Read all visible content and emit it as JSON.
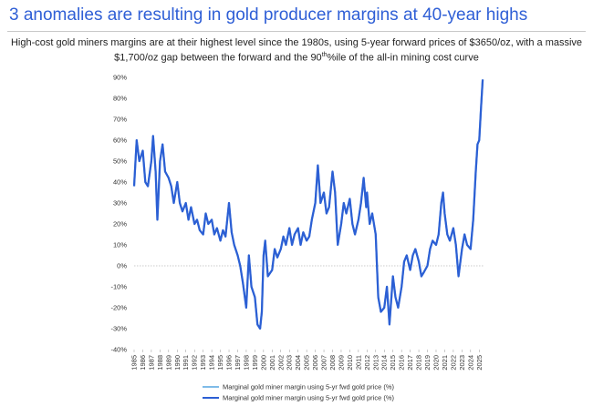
{
  "chart_data": {
    "type": "line",
    "title": "3 anomalies are resulting in gold producer margins at 40-year highs",
    "subtitle": [
      "High-cost gold miners margins are at their highest level since the 1980s, using 5-year forward prices of $3650/oz, with a massive $1,700/oz gap between the forward and the 90",
      "th",
      "%ile of the all-in mining cost curve"
    ],
    "x": [
      1985.0,
      1985.3,
      1985.6,
      1986.0,
      1986.3,
      1986.6,
      1987.0,
      1987.2,
      1987.5,
      1987.7,
      1988.0,
      1988.3,
      1988.6,
      1989.0,
      1989.3,
      1989.6,
      1990.0,
      1990.3,
      1990.6,
      1991.0,
      1991.3,
      1991.6,
      1992.0,
      1992.3,
      1992.6,
      1993.0,
      1993.3,
      1993.6,
      1994.0,
      1994.3,
      1994.6,
      1995.0,
      1995.3,
      1995.6,
      1996.0,
      1996.3,
      1996.6,
      1997.0,
      1997.3,
      1997.6,
      1998.0,
      1998.3,
      1998.6,
      1999.0,
      1999.3,
      1999.6,
      1999.8,
      2000.0,
      2000.2,
      2000.5,
      2001.0,
      2001.3,
      2001.6,
      2002.0,
      2002.3,
      2002.6,
      2003.0,
      2003.3,
      2003.6,
      2004.0,
      2004.3,
      2004.6,
      2005.0,
      2005.3,
      2005.6,
      2006.0,
      2006.3,
      2006.6,
      2007.0,
      2007.3,
      2007.6,
      2008.0,
      2008.3,
      2008.6,
      2009.0,
      2009.3,
      2009.6,
      2010.0,
      2010.3,
      2010.6,
      2011.0,
      2011.3,
      2011.6,
      2011.9,
      2012.0,
      2012.3,
      2012.6,
      2013.0,
      2013.3,
      2013.6,
      2014.0,
      2014.3,
      2014.6,
      2015.0,
      2015.3,
      2015.6,
      2016.0,
      2016.3,
      2016.6,
      2017.0,
      2017.3,
      2017.6,
      2018.0,
      2018.3,
      2018.6,
      2019.0,
      2019.3,
      2019.6,
      2020.0,
      2020.3,
      2020.6,
      2020.8,
      2021.0,
      2021.3,
      2021.6,
      2022.0,
      2022.3,
      2022.6,
      2023.0,
      2023.3,
      2023.6,
      2024.0,
      2024.3,
      2024.6,
      2024.8,
      2025.0,
      2025.2,
      2025.4
    ],
    "series": [
      {
        "name": "Marginal gold miner margin using 5-yr fwd gold price (%)",
        "color": "#7fbbe8",
        "values": [
          38,
          60,
          50,
          55,
          40,
          38,
          50,
          62,
          45,
          22,
          50,
          58,
          45,
          42,
          38,
          30,
          40,
          30,
          26,
          30,
          22,
          28,
          20,
          22,
          17,
          15,
          25,
          20,
          22,
          15,
          18,
          12,
          17,
          14,
          30,
          16,
          10,
          5,
          0,
          -8,
          -20,
          5,
          -10,
          -15,
          -28,
          -30,
          -22,
          5,
          12,
          -5,
          -2,
          8,
          4,
          8,
          14,
          10,
          18,
          10,
          15,
          18,
          10,
          16,
          12,
          14,
          22,
          30,
          48,
          30,
          35,
          25,
          28,
          45,
          35,
          10,
          20,
          30,
          25,
          32,
          20,
          15,
          22,
          30,
          42,
          28,
          35,
          20,
          25,
          15,
          -15,
          -22,
          -20,
          -10,
          -28,
          -5,
          -15,
          -20,
          -10,
          2,
          5,
          -2,
          5,
          8,
          2,
          -5,
          -3,
          0,
          8,
          12,
          10,
          15,
          30,
          35,
          25,
          15,
          12,
          18,
          10,
          -5,
          8,
          15,
          10,
          8,
          22,
          45,
          58,
          60,
          75,
          89
        ]
      },
      {
        "name": "Marginal gold miner margin using 5-yr fwd gold price (%)",
        "color": "#2c5fd4",
        "values": [
          38,
          60,
          50,
          55,
          40,
          38,
          50,
          62,
          45,
          22,
          50,
          58,
          45,
          42,
          38,
          30,
          40,
          30,
          26,
          30,
          22,
          28,
          20,
          22,
          17,
          15,
          25,
          20,
          22,
          15,
          18,
          12,
          17,
          14,
          30,
          16,
          10,
          5,
          0,
          -8,
          -20,
          5,
          -10,
          -15,
          -28,
          -30,
          -22,
          5,
          12,
          -5,
          -2,
          8,
          4,
          8,
          14,
          10,
          18,
          10,
          15,
          18,
          10,
          16,
          12,
          14,
          22,
          30,
          48,
          30,
          35,
          25,
          28,
          45,
          35,
          10,
          20,
          30,
          25,
          32,
          20,
          15,
          22,
          30,
          42,
          28,
          35,
          20,
          25,
          15,
          -15,
          -22,
          -20,
          -10,
          -28,
          -5,
          -15,
          -20,
          -10,
          2,
          5,
          -2,
          5,
          8,
          2,
          -5,
          -3,
          0,
          8,
          12,
          10,
          15,
          30,
          35,
          25,
          15,
          12,
          18,
          10,
          -5,
          8,
          15,
          10,
          8,
          22,
          45,
          58,
          60,
          75,
          89
        ]
      }
    ],
    "xlim": [
      1985,
      2025.5
    ],
    "xticks": [
      1985,
      1986,
      1987,
      1988,
      1989,
      1990,
      1991,
      1992,
      1993,
      1994,
      1995,
      1996,
      1997,
      1998,
      1999,
      2000,
      2001,
      2002,
      2003,
      2004,
      2005,
      2006,
      2007,
      2008,
      2009,
      2010,
      2011,
      2012,
      2013,
      2014,
      2015,
      2016,
      2017,
      2018,
      2019,
      2020,
      2021,
      2022,
      2023,
      2024,
      2025
    ],
    "ylim": [
      -40,
      90
    ],
    "yticks": [
      {
        "value": -40,
        "label": "-40%"
      },
      {
        "value": -30,
        "label": "-30%"
      },
      {
        "value": -20,
        "label": "-20%"
      },
      {
        "value": -10,
        "label": "-10%"
      },
      {
        "value": 0,
        "label": "0%"
      },
      {
        "value": 10,
        "label": "10%"
      },
      {
        "value": 20,
        "label": "20%"
      },
      {
        "value": 30,
        "label": "30%"
      },
      {
        "value": 40,
        "label": "40%"
      },
      {
        "value": 50,
        "label": "50%"
      },
      {
        "value": 60,
        "label": "60%"
      },
      {
        "value": 70,
        "label": "70%"
      },
      {
        "value": 80,
        "label": "80%"
      },
      {
        "value": 90,
        "label": "90%"
      }
    ],
    "grid": false
  }
}
